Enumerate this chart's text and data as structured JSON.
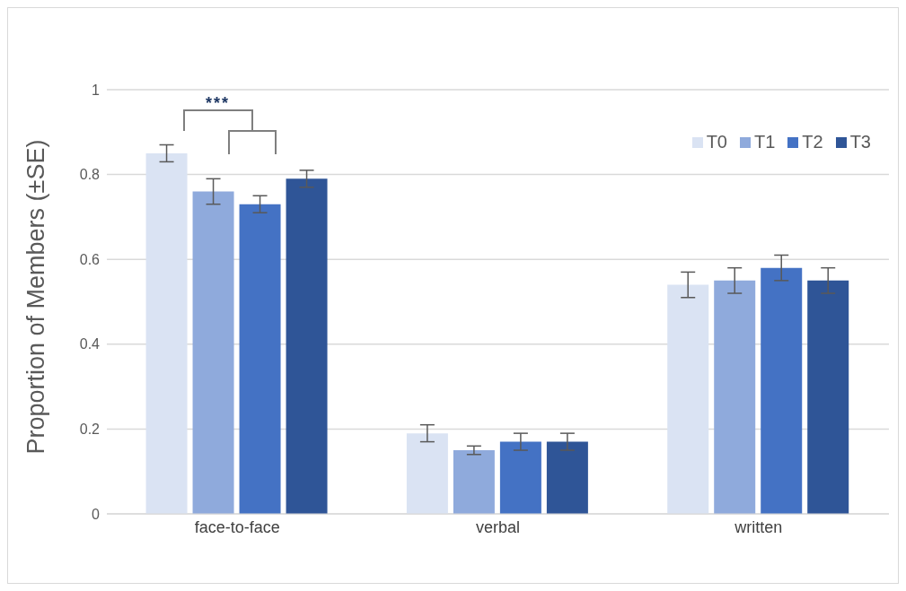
{
  "chart_data": {
    "type": "bar",
    "ylabel": "Proportion of Members (±SE)",
    "categories": [
      "face-to-face",
      "verbal",
      "written"
    ],
    "series": [
      {
        "name": "T0",
        "color": "#dae3f3",
        "values": [
          0.85,
          0.19,
          0.54
        ],
        "errors": [
          0.02,
          0.02,
          0.03
        ]
      },
      {
        "name": "T1",
        "color": "#8faadc",
        "values": [
          0.76,
          0.15,
          0.55
        ],
        "errors": [
          0.03,
          0.01,
          0.03
        ]
      },
      {
        "name": "T2",
        "color": "#4472c4",
        "values": [
          0.73,
          0.17,
          0.58
        ],
        "errors": [
          0.02,
          0.02,
          0.03
        ]
      },
      {
        "name": "T3",
        "color": "#2f5597",
        "values": [
          0.79,
          0.17,
          0.55
        ],
        "errors": [
          0.02,
          0.02,
          0.03
        ]
      }
    ],
    "ylim": [
      0,
      1
    ],
    "yticks": [
      0,
      0.2,
      0.4,
      0.6,
      0.8,
      1
    ],
    "grid": "y",
    "legend": "top right",
    "annotations": [
      "***"
    ]
  }
}
